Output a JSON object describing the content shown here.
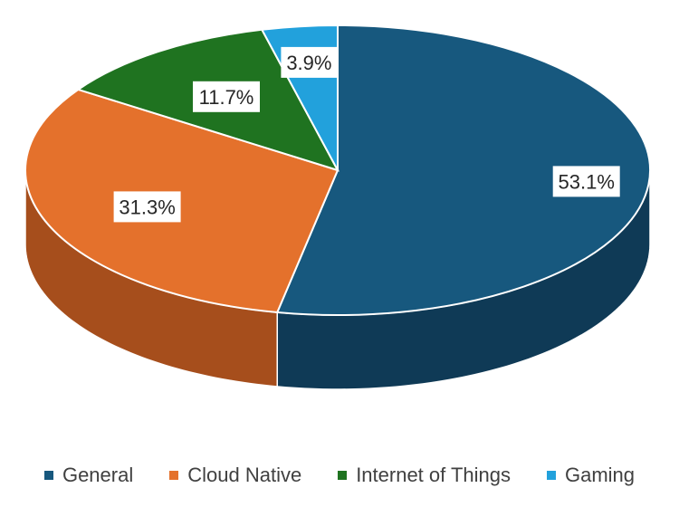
{
  "chart_data": {
    "type": "pie",
    "style": "3d",
    "legend_position": "bottom",
    "categories": [
      "General",
      "Cloud Native",
      "Internet of Things",
      "Gaming"
    ],
    "values": [
      53.1,
      31.3,
      11.7,
      3.9
    ],
    "labels": [
      "53.1%",
      "31.3%",
      "11.7%",
      "3.9%"
    ],
    "colors": [
      "#17587e",
      "#e4712c",
      "#1f7320",
      "#22a1dc"
    ],
    "side_colors": [
      "#0f3a56",
      "#a64e1c",
      "#134914",
      "#176f99"
    ]
  }
}
